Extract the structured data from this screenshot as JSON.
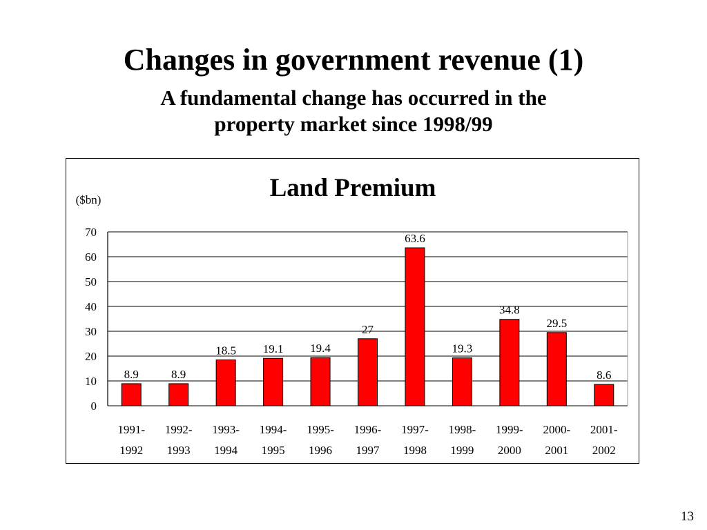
{
  "slide": {
    "title": "Changes in government revenue (1)",
    "subtitle_line1": "A fundamental change has occurred in the",
    "subtitle_line2": "property market since 1998/99",
    "page_number": "13"
  },
  "colors": {
    "bar": "#ff0000",
    "bar_stroke": "#000000",
    "grid": "#000000"
  },
  "chart_data": {
    "type": "bar",
    "title": "Land Premium",
    "ylabel": "($bn)",
    "xlabel": "",
    "ylim": [
      0,
      70
    ],
    "yticks": [
      0,
      10,
      20,
      30,
      40,
      50,
      60,
      70
    ],
    "grid": true,
    "categories": [
      [
        "1991-",
        "1992"
      ],
      [
        "1992-",
        "1993"
      ],
      [
        "1993-",
        "1994"
      ],
      [
        "1994-",
        "1995"
      ],
      [
        "1995-",
        "1996"
      ],
      [
        "1996-",
        "1997"
      ],
      [
        "1997-",
        "1998"
      ],
      [
        "1998-",
        "1999"
      ],
      [
        "1999-",
        "2000"
      ],
      [
        "2000-",
        "2001"
      ],
      [
        "2001-",
        "2002"
      ]
    ],
    "values": [
      8.9,
      8.9,
      18.5,
      19.1,
      19.4,
      27,
      63.6,
      19.3,
      34.8,
      29.5,
      8.6
    ],
    "data_labels": [
      "8.9",
      "8.9",
      "18.5",
      "19.1",
      "19.4",
      "27",
      "63.6",
      "19.3",
      "34.8",
      "29.5",
      "8.6"
    ]
  }
}
